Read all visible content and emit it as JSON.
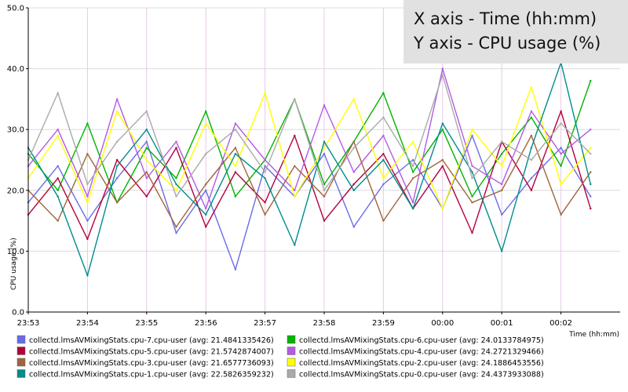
{
  "chart_data": {
    "type": "line",
    "title": "",
    "xlabel": "Time (hh:mm)",
    "ylabel": "CPU usage (%)",
    "ylim": [
      0,
      50
    ],
    "yticks": [
      "0.0",
      "10.0",
      "20.0",
      "30.0",
      "40.0",
      "50.0"
    ],
    "xlim": [
      "23:53",
      "00:03"
    ],
    "xticks": [
      "23:53",
      "23:54",
      "23:55",
      "23:56",
      "23:57",
      "23:58",
      "23:59",
      "00:00",
      "00:01",
      "00:02"
    ],
    "grid": true,
    "legend_placement": "bottom",
    "annotation": [
      "X axis - Time (hh:mm)",
      "Y axis - CPU usage (%)"
    ],
    "series": [
      {
        "name": "collectd.lmsAVMixingStats.cpu-7.cpu-user (avg: 21.4841335426)",
        "color": "#6B6BE8",
        "avg": 21.4841335426,
        "x": [
          "23:53:00",
          "23:53:30",
          "23:54:00",
          "23:54:30",
          "23:55:00",
          "23:55:30",
          "23:56:00",
          "23:56:30",
          "23:57:00",
          "23:57:30",
          "23:58:00",
          "23:58:30",
          "23:59:00",
          "23:59:30",
          "00:00:00",
          "00:00:30",
          "00:01:00",
          "00:01:30",
          "00:02:00",
          "00:02:30"
        ],
        "values": [
          18,
          24,
          15,
          22,
          28,
          13,
          20,
          7,
          24,
          19,
          26,
          14,
          21,
          25,
          17,
          29,
          16,
          22,
          27,
          19
        ]
      },
      {
        "name": "collectd.lmsAVMixingStats.cpu-6.cpu-user (avg: 24.0133784975)",
        "color": "#00B400",
        "avg": 24.0133784975,
        "x": [
          "23:53:00",
          "23:53:30",
          "23:54:00",
          "23:54:30",
          "23:55:00",
          "23:55:30",
          "23:56:00",
          "23:56:30",
          "23:57:00",
          "23:57:30",
          "23:58:00",
          "23:58:30",
          "23:59:00",
          "23:59:30",
          "00:00:00",
          "00:00:30",
          "00:01:00",
          "00:01:30",
          "00:02:00",
          "00:02:30"
        ],
        "values": [
          26,
          20,
          31,
          18,
          27,
          22,
          33,
          19,
          25,
          35,
          21,
          28,
          36,
          23,
          30,
          19,
          26,
          32,
          24,
          38
        ]
      },
      {
        "name": "collectd.lmsAVMixingStats.cpu-5.cpu-user (avg: 21.5742874007)",
        "color": "#B4003C",
        "avg": 21.5742874007,
        "x": [
          "23:53:00",
          "23:53:30",
          "23:54:00",
          "23:54:30",
          "23:55:00",
          "23:55:30",
          "23:56:00",
          "23:56:30",
          "23:57:00",
          "23:57:30",
          "23:58:00",
          "23:58:30",
          "23:59:00",
          "23:59:30",
          "00:00:00",
          "00:00:30",
          "00:01:00",
          "00:01:30",
          "00:02:00",
          "00:02:30"
        ],
        "values": [
          16,
          22,
          12,
          25,
          19,
          27,
          14,
          23,
          18,
          29,
          15,
          21,
          26,
          17,
          24,
          13,
          28,
          20,
          33,
          17
        ]
      },
      {
        "name": "collectd.lmsAVMixingStats.cpu-4.cpu-user (avg: 24.2721329466)",
        "color": "#B45AE6",
        "avg": 24.2721329466,
        "x": [
          "23:53:00",
          "23:53:30",
          "23:54:00",
          "23:54:30",
          "23:55:00",
          "23:55:30",
          "23:56:00",
          "23:56:30",
          "23:57:00",
          "23:57:30",
          "23:58:00",
          "23:58:30",
          "23:59:00",
          "23:59:30",
          "00:00:00",
          "00:00:30",
          "00:01:00",
          "00:01:30",
          "00:02:00",
          "00:02:30"
        ],
        "values": [
          24,
          30,
          19,
          35,
          22,
          28,
          17,
          31,
          25,
          20,
          34,
          23,
          29,
          18,
          40,
          24,
          21,
          33,
          26,
          30
        ]
      },
      {
        "name": "collectd.lmsAVMixingStats.cpu-3.cpu-user (avg: 21.6577736093)",
        "color": "#A0643C",
        "avg": 21.6577736093,
        "x": [
          "23:53:00",
          "23:53:30",
          "23:54:00",
          "23:54:30",
          "23:55:00",
          "23:55:30",
          "23:56:00",
          "23:56:30",
          "23:57:00",
          "23:57:30",
          "23:58:00",
          "23:58:30",
          "23:59:00",
          "23:59:30",
          "00:00:00",
          "00:00:30",
          "00:01:00",
          "00:01:30",
          "00:02:00",
          "00:02:30"
        ],
        "values": [
          20,
          15,
          26,
          18,
          23,
          14,
          21,
          27,
          16,
          24,
          19,
          28,
          15,
          22,
          25,
          18,
          20,
          29,
          16,
          23
        ]
      },
      {
        "name": "collectd.lmsAVMixingStats.cpu-2.cpu-user (avg: 24.1886453556)",
        "color": "#FFFF00",
        "avg": 24.1886453556,
        "x": [
          "23:53:00",
          "23:53:30",
          "23:54:00",
          "23:54:30",
          "23:55:00",
          "23:55:30",
          "23:56:00",
          "23:56:30",
          "23:57:00",
          "23:57:30",
          "23:58:00",
          "23:58:30",
          "23:59:00",
          "23:59:30",
          "00:00:00",
          "00:00:30",
          "00:01:00",
          "00:01:30",
          "00:02:00",
          "00:02:30"
        ],
        "values": [
          22,
          29,
          18,
          33,
          25,
          20,
          31,
          24,
          36,
          19,
          27,
          35,
          22,
          28,
          17,
          30,
          24,
          37,
          21,
          27
        ]
      },
      {
        "name": "collectd.lmsAVMixingStats.cpu-1.cpu-user (avg: 22.5826359232)",
        "color": "#008C8C",
        "avg": 22.5826359232,
        "x": [
          "23:53:00",
          "23:53:30",
          "23:54:00",
          "23:54:30",
          "23:55:00",
          "23:55:30",
          "23:56:00",
          "23:56:30",
          "23:57:00",
          "23:57:30",
          "23:58:00",
          "23:58:30",
          "23:59:00",
          "23:59:30",
          "00:00:00",
          "00:00:30",
          "00:01:00",
          "00:01:30",
          "00:02:00",
          "00:02:30"
        ],
        "values": [
          27,
          19,
          6,
          24,
          30,
          21,
          16,
          26,
          22,
          11,
          28,
          20,
          25,
          17,
          31,
          23,
          10,
          27,
          41,
          21
        ]
      },
      {
        "name": "collectd.lmsAVMixingStats.cpu-0.cpu-user (avg: 24.4373933088)",
        "color": "#AAAAAA",
        "avg": 24.4373933088,
        "x": [
          "23:53:00",
          "23:53:30",
          "23:54:00",
          "23:54:30",
          "23:55:00",
          "23:55:30",
          "23:56:00",
          "23:56:30",
          "23:57:00",
          "23:57:30",
          "23:58:00",
          "23:58:30",
          "23:59:00",
          "23:59:30",
          "00:00:00",
          "00:00:30",
          "00:01:00",
          "00:01:30",
          "00:02:00",
          "00:02:30"
        ],
        "values": [
          25,
          36,
          21,
          28,
          33,
          19,
          26,
          30,
          23,
          35,
          20,
          27,
          32,
          24,
          39,
          22,
          28,
          25,
          31,
          26
        ]
      }
    ]
  }
}
